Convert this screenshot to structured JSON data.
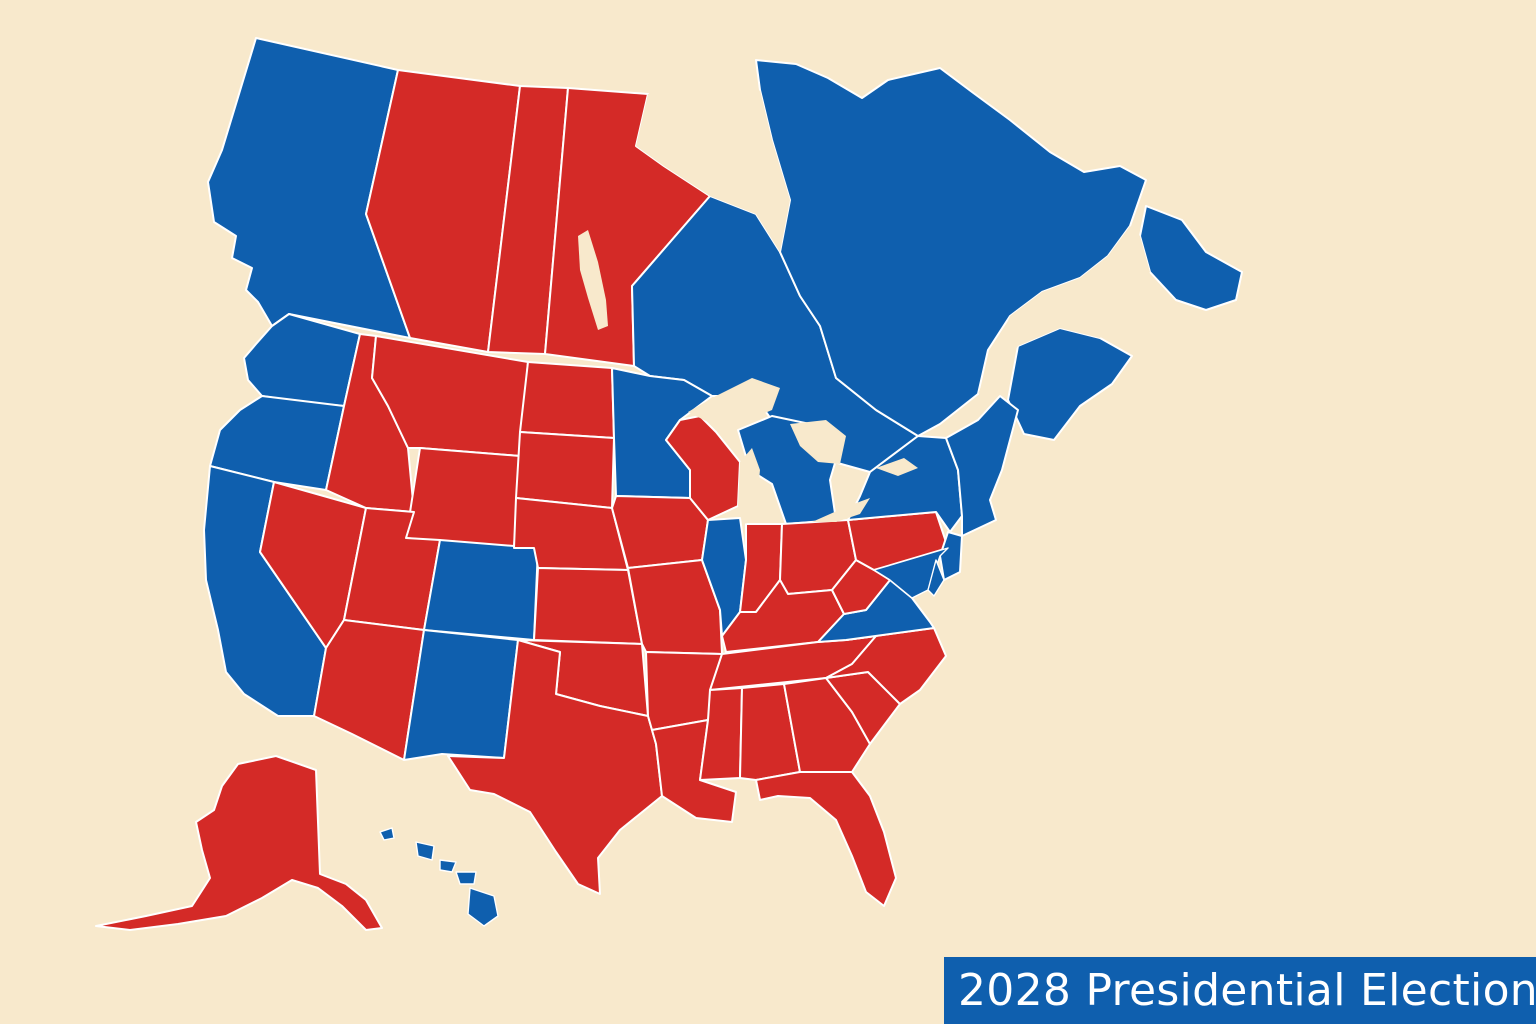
{
  "title": "2028 Presidential Election",
  "colors": {
    "background": "#f8e9cc",
    "democrat": "#0f5fae",
    "republican": "#d42a27",
    "border": "#ffffff",
    "banner_bg": "#0f5fae",
    "banner_text": "#ffffff"
  },
  "regions": [
    {
      "id": "british-columbia",
      "party": "democrat"
    },
    {
      "id": "alberta",
      "party": "republican"
    },
    {
      "id": "saskatchewan",
      "party": "republican"
    },
    {
      "id": "manitoba",
      "party": "republican"
    },
    {
      "id": "ontario",
      "party": "democrat"
    },
    {
      "id": "quebec",
      "party": "democrat"
    },
    {
      "id": "atlantic-canada",
      "party": "democrat"
    },
    {
      "id": "washington",
      "party": "democrat"
    },
    {
      "id": "oregon",
      "party": "democrat"
    },
    {
      "id": "california",
      "party": "democrat"
    },
    {
      "id": "nevada",
      "party": "republican"
    },
    {
      "id": "idaho",
      "party": "republican"
    },
    {
      "id": "montana",
      "party": "republican"
    },
    {
      "id": "wyoming",
      "party": "republican"
    },
    {
      "id": "utah",
      "party": "republican"
    },
    {
      "id": "colorado",
      "party": "democrat"
    },
    {
      "id": "arizona",
      "party": "republican"
    },
    {
      "id": "new-mexico",
      "party": "democrat"
    },
    {
      "id": "north-dakota",
      "party": "republican"
    },
    {
      "id": "south-dakota",
      "party": "republican"
    },
    {
      "id": "nebraska",
      "party": "republican"
    },
    {
      "id": "kansas",
      "party": "republican"
    },
    {
      "id": "oklahoma",
      "party": "republican"
    },
    {
      "id": "texas",
      "party": "republican"
    },
    {
      "id": "minnesota",
      "party": "democrat"
    },
    {
      "id": "iowa",
      "party": "republican"
    },
    {
      "id": "missouri",
      "party": "republican"
    },
    {
      "id": "arkansas",
      "party": "republican"
    },
    {
      "id": "louisiana",
      "party": "republican"
    },
    {
      "id": "wisconsin",
      "party": "republican"
    },
    {
      "id": "illinois",
      "party": "democrat"
    },
    {
      "id": "michigan",
      "party": "democrat"
    },
    {
      "id": "indiana",
      "party": "republican"
    },
    {
      "id": "ohio",
      "party": "republican"
    },
    {
      "id": "kentucky",
      "party": "republican"
    },
    {
      "id": "tennessee",
      "party": "republican"
    },
    {
      "id": "mississippi",
      "party": "republican"
    },
    {
      "id": "alabama",
      "party": "republican"
    },
    {
      "id": "georgia",
      "party": "republican"
    },
    {
      "id": "florida",
      "party": "republican"
    },
    {
      "id": "south-carolina",
      "party": "republican"
    },
    {
      "id": "north-carolina",
      "party": "republican"
    },
    {
      "id": "virginia",
      "party": "democrat"
    },
    {
      "id": "west-virginia",
      "party": "republican"
    },
    {
      "id": "pennsylvania",
      "party": "republican"
    },
    {
      "id": "new-york",
      "party": "democrat"
    },
    {
      "id": "new-jersey",
      "party": "democrat"
    },
    {
      "id": "maryland",
      "party": "democrat"
    },
    {
      "id": "delaware",
      "party": "democrat"
    },
    {
      "id": "new-england",
      "party": "democrat"
    },
    {
      "id": "alaska",
      "party": "republican"
    },
    {
      "id": "hawaii",
      "party": "democrat"
    }
  ]
}
